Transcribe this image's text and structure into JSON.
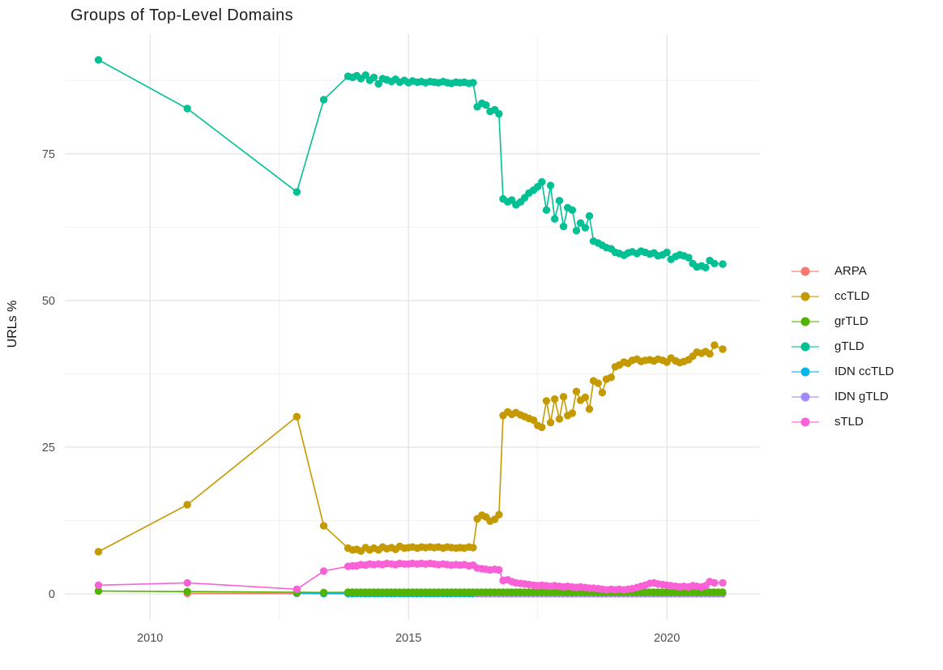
{
  "chart_data": {
    "type": "line",
    "title": "Groups of Top-Level Domains",
    "xlabel": "",
    "ylabel": "URLs %",
    "xlim": [
      2008.35,
      2021.8
    ],
    "ylim": [
      -4.4,
      95.4
    ],
    "x_major_ticks": [
      2010,
      2015,
      2020
    ],
    "x_tick_labels": [
      "2010",
      "2015",
      "2020"
    ],
    "x_minor_gridlines": [
      2012.5,
      2017.5
    ],
    "y_major_ticks": [
      0,
      25,
      50,
      75
    ],
    "y_tick_labels": [
      "0",
      "25",
      "50",
      "75"
    ],
    "y_minor_gridlines": [
      12.5,
      37.5,
      62.5,
      87.5
    ],
    "grid": true,
    "legend_position": "right",
    "series": [
      {
        "name": "ARPA",
        "color": "#F8766D",
        "points": [
          [
            2010.72,
            0.1
          ],
          [
            2012.84,
            0.07
          ],
          [
            2013.36,
            0.05
          ]
        ],
        "flat_tail": {
          "from": 2013.83,
          "to": 2021.08,
          "step": 0.0833,
          "value": 0.05
        }
      },
      {
        "name": "ccTLD",
        "color": "#C49A00",
        "points": [
          [
            2009.0,
            7.2
          ],
          [
            2010.72,
            15.2
          ],
          [
            2012.84,
            30.2
          ],
          [
            2013.36,
            11.6
          ],
          [
            2013.83,
            7.8
          ],
          [
            2013.92,
            7.5
          ],
          [
            2014.0,
            7.6
          ],
          [
            2014.08,
            7.3
          ],
          [
            2014.17,
            7.9
          ],
          [
            2014.25,
            7.5
          ],
          [
            2014.33,
            7.8
          ],
          [
            2014.42,
            7.5
          ],
          [
            2014.5,
            8.0
          ],
          [
            2014.58,
            7.7
          ],
          [
            2014.67,
            7.9
          ],
          [
            2014.75,
            7.6
          ],
          [
            2014.83,
            8.1
          ],
          [
            2014.92,
            7.8
          ],
          [
            2015.0,
            7.9
          ],
          [
            2015.08,
            8.0
          ],
          [
            2015.17,
            7.8
          ],
          [
            2015.25,
            8.0
          ],
          [
            2015.33,
            7.9
          ],
          [
            2015.42,
            8.0
          ],
          [
            2015.5,
            7.9
          ],
          [
            2015.58,
            8.0
          ],
          [
            2015.67,
            7.8
          ],
          [
            2015.75,
            8.0
          ],
          [
            2015.83,
            7.9
          ],
          [
            2015.92,
            7.8
          ],
          [
            2016.0,
            7.9
          ],
          [
            2016.08,
            7.8
          ],
          [
            2016.17,
            8.0
          ],
          [
            2016.25,
            7.9
          ],
          [
            2016.33,
            12.8
          ],
          [
            2016.42,
            13.4
          ],
          [
            2016.5,
            13.1
          ],
          [
            2016.58,
            12.4
          ],
          [
            2016.67,
            12.7
          ],
          [
            2016.75,
            13.5
          ],
          [
            2016.83,
            30.4
          ],
          [
            2016.92,
            31.0
          ],
          [
            2017.0,
            30.6
          ],
          [
            2017.08,
            30.9
          ],
          [
            2017.17,
            30.5
          ],
          [
            2017.25,
            30.2
          ],
          [
            2017.33,
            29.9
          ],
          [
            2017.42,
            29.6
          ],
          [
            2017.5,
            28.7
          ],
          [
            2017.58,
            28.4
          ],
          [
            2017.67,
            32.9
          ],
          [
            2017.75,
            29.2
          ],
          [
            2017.83,
            33.2
          ],
          [
            2017.92,
            29.8
          ],
          [
            2018.0,
            33.6
          ],
          [
            2018.08,
            30.4
          ],
          [
            2018.17,
            30.8
          ],
          [
            2018.25,
            34.5
          ],
          [
            2018.33,
            33.0
          ],
          [
            2018.42,
            33.5
          ],
          [
            2018.5,
            31.5
          ],
          [
            2018.58,
            36.3
          ],
          [
            2018.67,
            35.9
          ],
          [
            2018.75,
            34.3
          ],
          [
            2018.83,
            36.6
          ],
          [
            2018.92,
            36.9
          ],
          [
            2019.0,
            38.7
          ],
          [
            2019.08,
            39.0
          ],
          [
            2019.17,
            39.5
          ],
          [
            2019.25,
            39.3
          ],
          [
            2019.33,
            39.8
          ],
          [
            2019.42,
            40.0
          ],
          [
            2019.5,
            39.6
          ],
          [
            2019.58,
            39.8
          ],
          [
            2019.67,
            39.9
          ],
          [
            2019.75,
            39.7
          ],
          [
            2019.83,
            40.0
          ],
          [
            2019.92,
            39.8
          ],
          [
            2020.0,
            39.5
          ],
          [
            2020.08,
            40.2
          ],
          [
            2020.17,
            39.7
          ],
          [
            2020.25,
            39.4
          ],
          [
            2020.33,
            39.6
          ],
          [
            2020.42,
            39.9
          ],
          [
            2020.5,
            40.5
          ],
          [
            2020.58,
            41.2
          ],
          [
            2020.67,
            41.0
          ],
          [
            2020.75,
            41.3
          ],
          [
            2020.83,
            40.9
          ],
          [
            2020.92,
            42.4
          ],
          [
            2021.08,
            41.7
          ]
        ]
      },
      {
        "name": "grTLD",
        "color": "#53B400",
        "points": [
          [
            2009.0,
            0.5
          ],
          [
            2010.72,
            0.4
          ],
          [
            2012.84,
            0.3
          ],
          [
            2013.36,
            0.25
          ]
        ],
        "flat_tail": {
          "from": 2013.83,
          "to": 2021.08,
          "step": 0.0833,
          "value": 0.3
        }
      },
      {
        "name": "gTLD",
        "color": "#00C094",
        "points": [
          [
            2009.0,
            91.0
          ],
          [
            2010.72,
            82.7
          ],
          [
            2012.84,
            68.5
          ],
          [
            2013.36,
            84.2
          ],
          [
            2013.83,
            88.2
          ],
          [
            2013.92,
            88.0
          ],
          [
            2014.0,
            88.3
          ],
          [
            2014.08,
            87.8
          ],
          [
            2014.17,
            88.4
          ],
          [
            2014.25,
            87.5
          ],
          [
            2014.33,
            88.0
          ],
          [
            2014.42,
            86.9
          ],
          [
            2014.5,
            87.8
          ],
          [
            2014.58,
            87.6
          ],
          [
            2014.67,
            87.3
          ],
          [
            2014.75,
            87.7
          ],
          [
            2014.83,
            87.2
          ],
          [
            2014.92,
            87.5
          ],
          [
            2015.0,
            87.1
          ],
          [
            2015.08,
            87.4
          ],
          [
            2015.17,
            87.2
          ],
          [
            2015.25,
            87.3
          ],
          [
            2015.33,
            87.1
          ],
          [
            2015.42,
            87.3
          ],
          [
            2015.5,
            87.2
          ],
          [
            2015.58,
            87.1
          ],
          [
            2015.67,
            87.3
          ],
          [
            2015.75,
            87.1
          ],
          [
            2015.83,
            87.0
          ],
          [
            2015.92,
            87.2
          ],
          [
            2016.0,
            87.1
          ],
          [
            2016.08,
            87.2
          ],
          [
            2016.17,
            87.0
          ],
          [
            2016.25,
            87.1
          ],
          [
            2016.33,
            83.0
          ],
          [
            2016.42,
            83.6
          ],
          [
            2016.5,
            83.3
          ],
          [
            2016.58,
            82.2
          ],
          [
            2016.67,
            82.5
          ],
          [
            2016.75,
            81.8
          ],
          [
            2016.83,
            67.3
          ],
          [
            2016.92,
            66.8
          ],
          [
            2017.0,
            67.1
          ],
          [
            2017.08,
            66.3
          ],
          [
            2017.17,
            66.8
          ],
          [
            2017.25,
            67.5
          ],
          [
            2017.33,
            68.3
          ],
          [
            2017.42,
            68.8
          ],
          [
            2017.5,
            69.4
          ],
          [
            2017.58,
            70.2
          ],
          [
            2017.67,
            65.4
          ],
          [
            2017.75,
            69.6
          ],
          [
            2017.83,
            63.9
          ],
          [
            2017.92,
            67.0
          ],
          [
            2018.0,
            62.6
          ],
          [
            2018.08,
            65.8
          ],
          [
            2018.17,
            65.4
          ],
          [
            2018.25,
            61.9
          ],
          [
            2018.33,
            63.2
          ],
          [
            2018.42,
            62.4
          ],
          [
            2018.5,
            64.4
          ],
          [
            2018.58,
            60.1
          ],
          [
            2018.67,
            59.8
          ],
          [
            2018.75,
            59.4
          ],
          [
            2018.83,
            59.0
          ],
          [
            2018.92,
            58.8
          ],
          [
            2019.0,
            58.2
          ],
          [
            2019.08,
            58.0
          ],
          [
            2019.17,
            57.7
          ],
          [
            2019.25,
            58.1
          ],
          [
            2019.33,
            58.3
          ],
          [
            2019.42,
            58.0
          ],
          [
            2019.5,
            58.4
          ],
          [
            2019.58,
            58.2
          ],
          [
            2019.67,
            57.9
          ],
          [
            2019.75,
            58.1
          ],
          [
            2019.83,
            57.6
          ],
          [
            2019.92,
            57.8
          ],
          [
            2020.0,
            58.2
          ],
          [
            2020.08,
            57.0
          ],
          [
            2020.17,
            57.5
          ],
          [
            2020.25,
            57.8
          ],
          [
            2020.33,
            57.6
          ],
          [
            2020.42,
            57.3
          ],
          [
            2020.5,
            56.3
          ],
          [
            2020.58,
            55.7
          ],
          [
            2020.67,
            55.9
          ],
          [
            2020.75,
            55.6
          ],
          [
            2020.83,
            56.8
          ],
          [
            2020.92,
            56.3
          ],
          [
            2021.08,
            56.2
          ]
        ]
      },
      {
        "name": "IDN ccTLD",
        "color": "#00B6EB",
        "points": [
          [
            2012.84,
            0.15
          ],
          [
            2013.36,
            0.1
          ]
        ],
        "flat_tail": {
          "from": 2013.83,
          "to": 2021.08,
          "step": 0.0833,
          "value": 0.08
        }
      },
      {
        "name": "IDN gTLD",
        "color": "#A58AFF",
        "points": [],
        "flat_tail": {
          "from": 2016.33,
          "to": 2021.08,
          "step": 0.0833,
          "value": 0.05
        }
      },
      {
        "name": "sTLD",
        "color": "#FB61D7",
        "points": [
          [
            2009.0,
            1.5
          ],
          [
            2010.72,
            1.9
          ],
          [
            2012.84,
            0.8
          ],
          [
            2013.36,
            3.9
          ],
          [
            2013.83,
            4.7
          ],
          [
            2013.92,
            4.8
          ],
          [
            2014.0,
            4.8
          ],
          [
            2014.08,
            5.0
          ],
          [
            2014.17,
            4.9
          ],
          [
            2014.25,
            5.1
          ],
          [
            2014.33,
            5.0
          ],
          [
            2014.42,
            5.1
          ],
          [
            2014.5,
            5.0
          ],
          [
            2014.58,
            5.2
          ],
          [
            2014.67,
            5.1
          ],
          [
            2014.75,
            5.0
          ],
          [
            2014.83,
            5.2
          ],
          [
            2014.92,
            5.1
          ],
          [
            2015.0,
            5.1
          ],
          [
            2015.08,
            5.2
          ],
          [
            2015.17,
            5.1
          ],
          [
            2015.25,
            5.2
          ],
          [
            2015.33,
            5.1
          ],
          [
            2015.42,
            5.2
          ],
          [
            2015.5,
            5.1
          ],
          [
            2015.58,
            5.0
          ],
          [
            2015.67,
            5.1
          ],
          [
            2015.75,
            5.0
          ],
          [
            2015.83,
            4.9
          ],
          [
            2015.92,
            5.0
          ],
          [
            2016.0,
            4.9
          ],
          [
            2016.08,
            5.0
          ],
          [
            2016.17,
            4.8
          ],
          [
            2016.25,
            4.9
          ],
          [
            2016.33,
            4.4
          ],
          [
            2016.42,
            4.3
          ],
          [
            2016.5,
            4.2
          ],
          [
            2016.58,
            4.1
          ],
          [
            2016.67,
            4.2
          ],
          [
            2016.75,
            4.1
          ],
          [
            2016.83,
            2.3
          ],
          [
            2016.92,
            2.4
          ],
          [
            2017.0,
            2.1
          ],
          [
            2017.08,
            1.9
          ],
          [
            2017.17,
            1.8
          ],
          [
            2017.25,
            1.7
          ],
          [
            2017.33,
            1.6
          ],
          [
            2017.42,
            1.5
          ],
          [
            2017.5,
            1.4
          ],
          [
            2017.58,
            1.5
          ],
          [
            2017.67,
            1.4
          ],
          [
            2017.75,
            1.3
          ],
          [
            2017.83,
            1.4
          ],
          [
            2017.92,
            1.3
          ],
          [
            2018.0,
            1.2
          ],
          [
            2018.08,
            1.3
          ],
          [
            2018.17,
            1.2
          ],
          [
            2018.25,
            1.1
          ],
          [
            2018.33,
            1.2
          ],
          [
            2018.42,
            1.1
          ],
          [
            2018.5,
            1.0
          ],
          [
            2018.58,
            1.0
          ],
          [
            2018.67,
            0.9
          ],
          [
            2018.75,
            0.8
          ],
          [
            2018.83,
            0.7
          ],
          [
            2018.92,
            0.8
          ],
          [
            2019.0,
            0.7
          ],
          [
            2019.08,
            0.8
          ],
          [
            2019.17,
            0.7
          ],
          [
            2019.25,
            0.8
          ],
          [
            2019.33,
            0.9
          ],
          [
            2019.42,
            1.1
          ],
          [
            2019.5,
            1.3
          ],
          [
            2019.58,
            1.5
          ],
          [
            2019.67,
            1.8
          ],
          [
            2019.75,
            1.9
          ],
          [
            2019.83,
            1.7
          ],
          [
            2019.92,
            1.6
          ],
          [
            2020.0,
            1.5
          ],
          [
            2020.08,
            1.4
          ],
          [
            2020.17,
            1.3
          ],
          [
            2020.25,
            1.2
          ],
          [
            2020.33,
            1.3
          ],
          [
            2020.42,
            1.2
          ],
          [
            2020.5,
            1.4
          ],
          [
            2020.58,
            1.3
          ],
          [
            2020.67,
            1.2
          ],
          [
            2020.75,
            1.4
          ],
          [
            2020.83,
            2.1
          ],
          [
            2020.92,
            1.9
          ],
          [
            2021.08,
            1.9
          ]
        ]
      }
    ],
    "colors": {
      "grid_major": "#e4e4e4",
      "grid_minor": "#f1f1f1",
      "tick_label": "#4d4d4d",
      "title_text": "#1c1c1c"
    }
  }
}
